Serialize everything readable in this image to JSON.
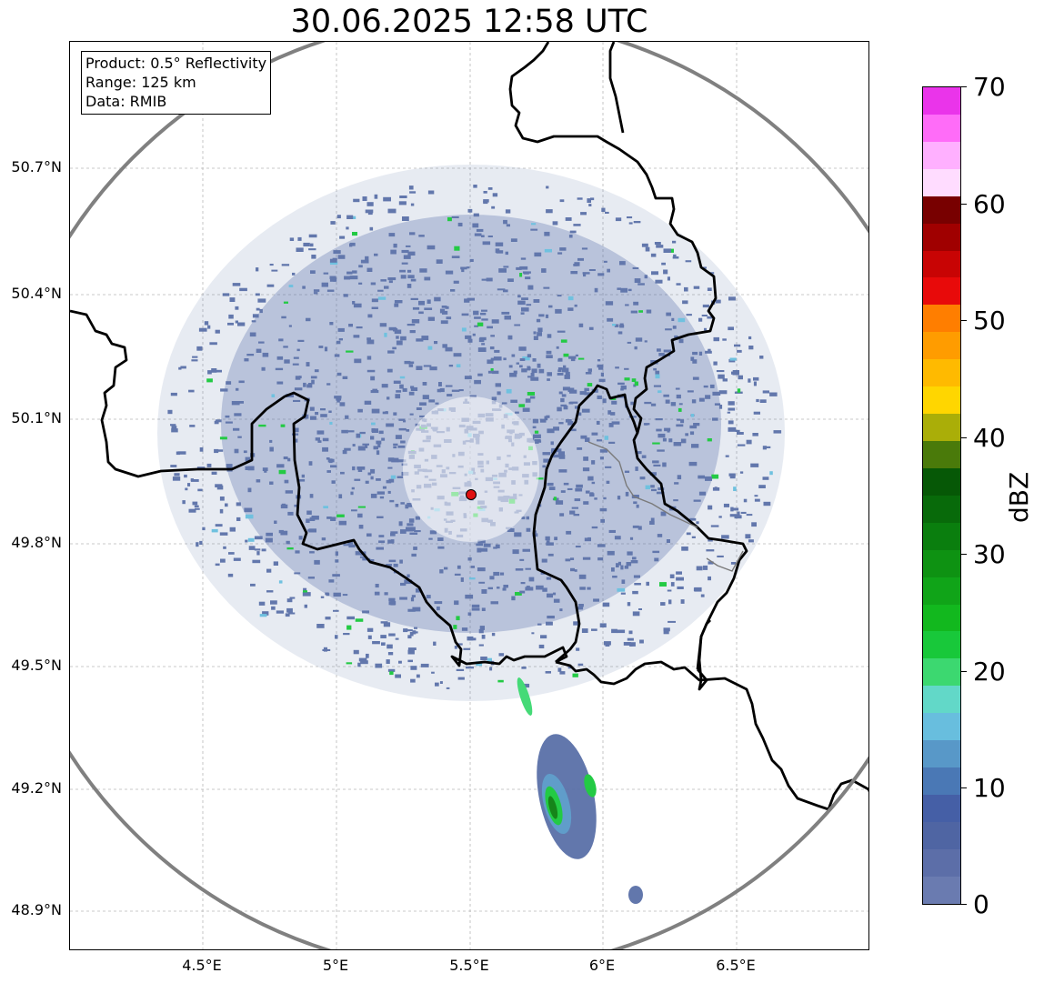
{
  "title": "30.06.2025 12:58 UTC",
  "info": {
    "product": "Product: 0.5° Reflectivity",
    "range": "Range: 125 km",
    "data": "Data: RMIB"
  },
  "map": {
    "lat_ticks": [
      "50.7°N",
      "50.4°N",
      "50.1°N",
      "49.8°N",
      "49.5°N",
      "49.2°N",
      "48.9°N"
    ],
    "lon_ticks": [
      "4.5°E",
      "5°E",
      "5.5°E",
      "6°E",
      "6.5°E"
    ],
    "lon_range": [
      4.0,
      7.0
    ],
    "lat_range": [
      48.81,
      51.0
    ],
    "radar_site": {
      "lon": 5.505,
      "lat": 49.915,
      "color": "#e01010"
    },
    "range_ring_color": "#808080",
    "border_color": "#000000",
    "echo_color_main": "#5a70a8"
  },
  "colorbar": {
    "label": "dBZ",
    "ticks": [
      "70",
      "60",
      "50",
      "40",
      "30",
      "20",
      "10",
      "0"
    ],
    "colors": [
      "#6a7bb0",
      "#5c6ea8",
      "#4f65a3",
      "#455fa6",
      "#4a78b5",
      "#5898c8",
      "#68bede",
      "#62d8c8",
      "#3cd870",
      "#18c83a",
      "#12b81e",
      "#10a418",
      "#0e9212",
      "#0a7e0e",
      "#086a0a",
      "#065806",
      "#4a7a0a",
      "#aaae08",
      "#ffd600",
      "#ffba00",
      "#ff9c00",
      "#ff7e00",
      "#e80a0a",
      "#c80404",
      "#a00000",
      "#780000",
      "#ffdcff",
      "#ffb0ff",
      "#ff6cf8",
      "#ea34ea"
    ]
  }
}
